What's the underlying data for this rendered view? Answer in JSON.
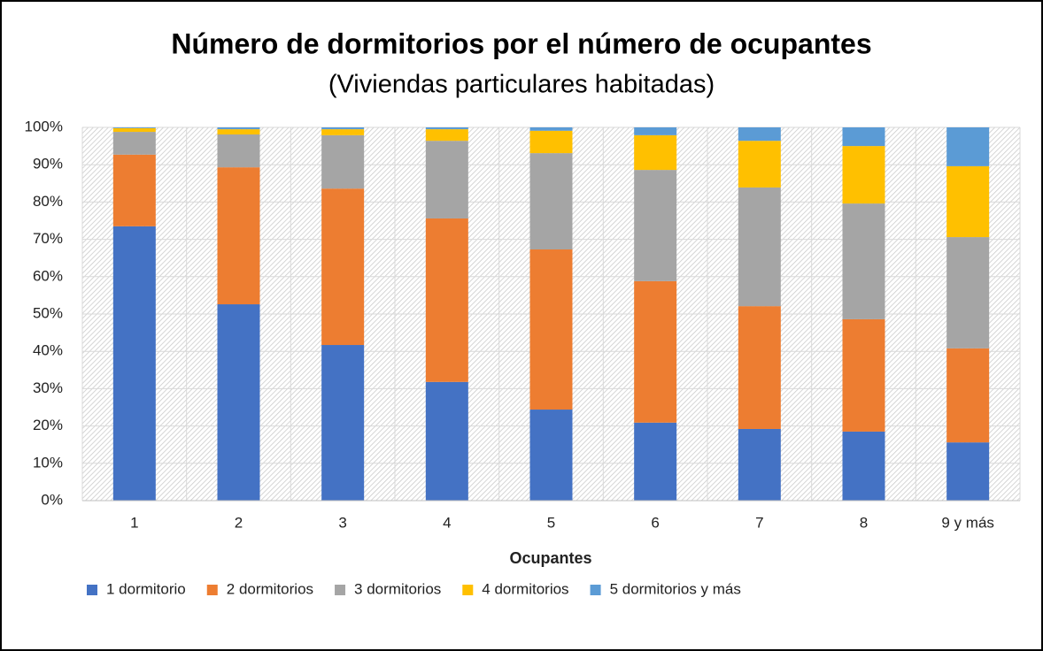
{
  "chart_data": {
    "type": "stacked_bar_100",
    "title": "Número de dormitorios por el número de ocupantes",
    "subtitle": "(Viviendas particulares habitadas)",
    "x_label": "Ocupantes",
    "categories": [
      "1",
      "2",
      "3",
      "4",
      "5",
      "6",
      "7",
      "8",
      "9  y más"
    ],
    "series": [
      {
        "name": "1 dormitorio",
        "color": "#4472c4",
        "values": [
          73.5,
          52.6,
          41.7,
          31.8,
          24.4,
          20.9,
          19.2,
          18.5,
          15.6
        ]
      },
      {
        "name": "2 dormitorios",
        "color": "#ed7d31",
        "values": [
          19.2,
          36.7,
          41.9,
          43.8,
          42.9,
          37.9,
          32.9,
          30.1,
          25.2
        ]
      },
      {
        "name": "3 dormitorios",
        "color": "#a5a5a5",
        "values": [
          6.1,
          8.8,
          14.3,
          20.8,
          25.8,
          29.8,
          31.8,
          31.0,
          29.8
        ]
      },
      {
        "name": "4 dormitorios",
        "color": "#ffc000",
        "values": [
          1.0,
          1.4,
          1.6,
          3.1,
          6.0,
          9.3,
          12.5,
          15.4,
          19.0
        ]
      },
      {
        "name": "5 dormitorios y más",
        "color": "#5b9bd5",
        "values": [
          0.2,
          0.5,
          0.5,
          0.5,
          0.9,
          2.1,
          3.6,
          5.0,
          10.4
        ]
      }
    ],
    "ylim": [
      0,
      100
    ],
    "yticks": [
      {
        "value": 0,
        "label": "0%"
      },
      {
        "value": 10,
        "label": "10%"
      },
      {
        "value": 20,
        "label": "20%"
      },
      {
        "value": 30,
        "label": "30%"
      },
      {
        "value": 40,
        "label": "40%"
      },
      {
        "value": 50,
        "label": "50%"
      },
      {
        "value": 60,
        "label": "60%"
      },
      {
        "value": 70,
        "label": "70%"
      },
      {
        "value": 80,
        "label": "80%"
      },
      {
        "value": 90,
        "label": "90%"
      },
      {
        "value": 100,
        "label": "100%"
      }
    ],
    "grid": true,
    "legend": "bottom"
  }
}
